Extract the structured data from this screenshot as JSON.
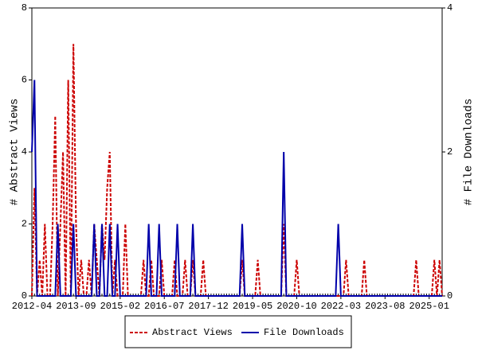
{
  "chart_data": {
    "type": "line",
    "categories": [
      "2012-04",
      null,
      null,
      null,
      null,
      null,
      null,
      null,
      null,
      null,
      null,
      null,
      null,
      null,
      null,
      null,
      null,
      "2013-09",
      null,
      null,
      null,
      null,
      null,
      null,
      null,
      null,
      null,
      null,
      null,
      null,
      null,
      null,
      null,
      null,
      "2015-02",
      null,
      null,
      null,
      null,
      null,
      null,
      null,
      null,
      null,
      null,
      null,
      null,
      null,
      null,
      null,
      null,
      "2016-07",
      null,
      null,
      null,
      null,
      null,
      null,
      null,
      null,
      null,
      null,
      null,
      null,
      null,
      null,
      null,
      null,
      "2017-12",
      null,
      null,
      null,
      null,
      null,
      null,
      null,
      null,
      null,
      null,
      null,
      null,
      null,
      null,
      null,
      null,
      "2019-05",
      null,
      null,
      null,
      null,
      null,
      null,
      null,
      null,
      null,
      null,
      null,
      null,
      null,
      null,
      null,
      null,
      "2020-10",
      null,
      null,
      null,
      null,
      null,
      null,
      null,
      null,
      null,
      null,
      null,
      null,
      null,
      null,
      null,
      null,
      "2022-03",
      null,
      null,
      null,
      null,
      null,
      null,
      null,
      null,
      null,
      null,
      null,
      null,
      null,
      null,
      null,
      null,
      "2023-08",
      null,
      null,
      null,
      null,
      null,
      null,
      null,
      null,
      null,
      null,
      null,
      null,
      null,
      null,
      null,
      null,
      "2025-01",
      null,
      null,
      null,
      null,
      null
    ],
    "series": [
      {
        "name": "Abstract Views",
        "color": "#cc0000",
        "axis": "y",
        "dash": true,
        "values": [
          0,
          3,
          0,
          1,
          0,
          2,
          0,
          0,
          2,
          5,
          0,
          2,
          4,
          0,
          6,
          0,
          7,
          2,
          0,
          1,
          0,
          0,
          1,
          0,
          2,
          1,
          0,
          2,
          1,
          3,
          4,
          0,
          1,
          0,
          0,
          0,
          2,
          0,
          0,
          0,
          0,
          0,
          0,
          1,
          0,
          0,
          1,
          0,
          0,
          0,
          1,
          0,
          0,
          0,
          0,
          1,
          0,
          0,
          0,
          1,
          0,
          0,
          1,
          0,
          0,
          0,
          1,
          0,
          0,
          0,
          0,
          0,
          0,
          0,
          0,
          0,
          0,
          0,
          0,
          0,
          0,
          1,
          0,
          0,
          0,
          0,
          0,
          1,
          0,
          0,
          0,
          0,
          0,
          0,
          0,
          0,
          0,
          2,
          0,
          0,
          0,
          0,
          1,
          0,
          0,
          0,
          0,
          0,
          0,
          0,
          0,
          0,
          0,
          0,
          0,
          0,
          0,
          0,
          0,
          0,
          0,
          1,
          0,
          0,
          0,
          0,
          0,
          0,
          1,
          0,
          0,
          0,
          0,
          0,
          0,
          0,
          0,
          0,
          0,
          0,
          0,
          0,
          0,
          0,
          0,
          0,
          0,
          0,
          1,
          0,
          0,
          0,
          0,
          0,
          0,
          1,
          0,
          1,
          0
        ]
      },
      {
        "name": "File Downloads",
        "color": "#0000aa",
        "axis": "y2",
        "dash": false,
        "values": [
          2,
          3,
          0,
          0,
          0,
          0,
          0,
          0,
          0,
          0,
          1,
          0,
          0,
          0,
          0,
          0,
          1,
          0,
          0,
          0,
          0,
          0,
          0,
          0,
          1,
          0,
          0,
          1,
          0,
          0,
          1,
          0,
          0,
          1,
          0,
          0,
          0,
          0,
          0,
          0,
          0,
          0,
          0,
          0,
          0,
          1,
          0,
          0,
          0,
          1,
          0,
          0,
          0,
          0,
          0,
          0,
          1,
          0,
          0,
          0,
          0,
          0,
          1,
          0,
          0,
          0,
          0,
          0,
          0,
          0,
          0,
          0,
          0,
          0,
          0,
          0,
          0,
          0,
          0,
          0,
          0,
          1,
          0,
          0,
          0,
          0,
          0,
          0,
          0,
          0,
          0,
          0,
          0,
          0,
          0,
          0,
          0,
          2,
          0,
          0,
          0,
          0,
          0,
          0,
          0,
          0,
          0,
          0,
          0,
          0,
          0,
          0,
          0,
          0,
          0,
          0,
          0,
          0,
          1,
          0,
          0,
          0,
          0,
          0,
          0,
          0,
          0,
          0,
          0,
          0,
          0,
          0,
          0,
          0,
          0,
          0,
          0,
          0,
          0,
          0,
          0,
          0,
          0,
          0,
          0,
          0,
          0,
          0,
          0,
          0,
          0,
          0,
          0,
          0,
          0,
          0,
          0,
          0,
          0
        ]
      }
    ],
    "ylabel": "# Abstract Views",
    "y2label": "# File Downloads",
    "ylim": [
      0,
      8
    ],
    "yticks": [
      0,
      2,
      4,
      6,
      8
    ],
    "y2lim": [
      0,
      4
    ],
    "y2ticks": [
      0,
      2,
      4
    ],
    "legend": "bottom"
  }
}
